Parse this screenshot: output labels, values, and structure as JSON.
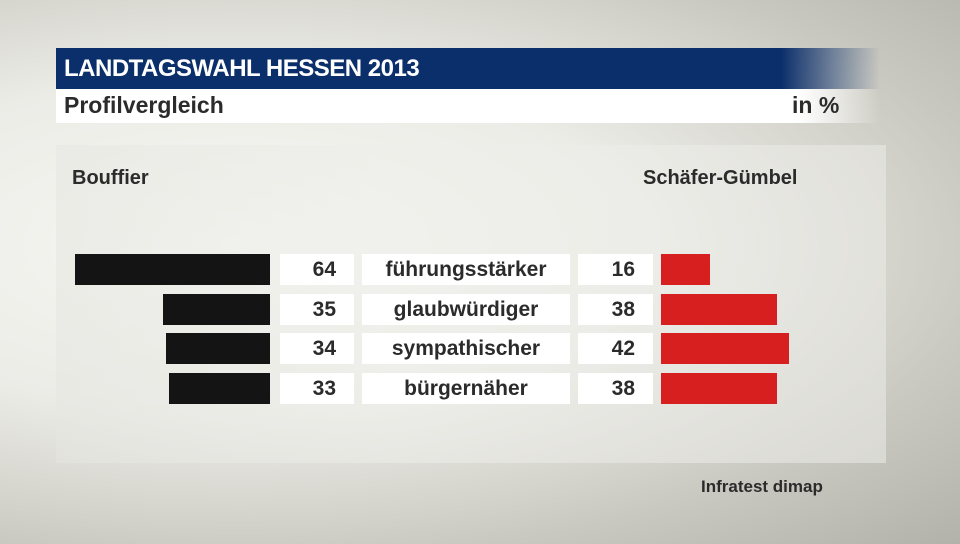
{
  "header": {
    "title": "LANDTAGSWAHL HESSEN 2013",
    "subtitle": "Profilvergleich",
    "unit": "in %"
  },
  "chart_data": {
    "type": "bar",
    "orientation": "horizontal-butterfly",
    "categories": [
      "führungsstärker",
      "glaubwürdiger",
      "sympathischer",
      "bürgernäher"
    ],
    "series": [
      {
        "name": "Bouffier",
        "values": [
          64,
          35,
          34,
          33
        ],
        "color": "#141414"
      },
      {
        "name": "Schäfer-Gümbel",
        "values": [
          16,
          38,
          42,
          38
        ],
        "color": "#d81f20"
      }
    ]
  },
  "source": "Infratest dimap"
}
